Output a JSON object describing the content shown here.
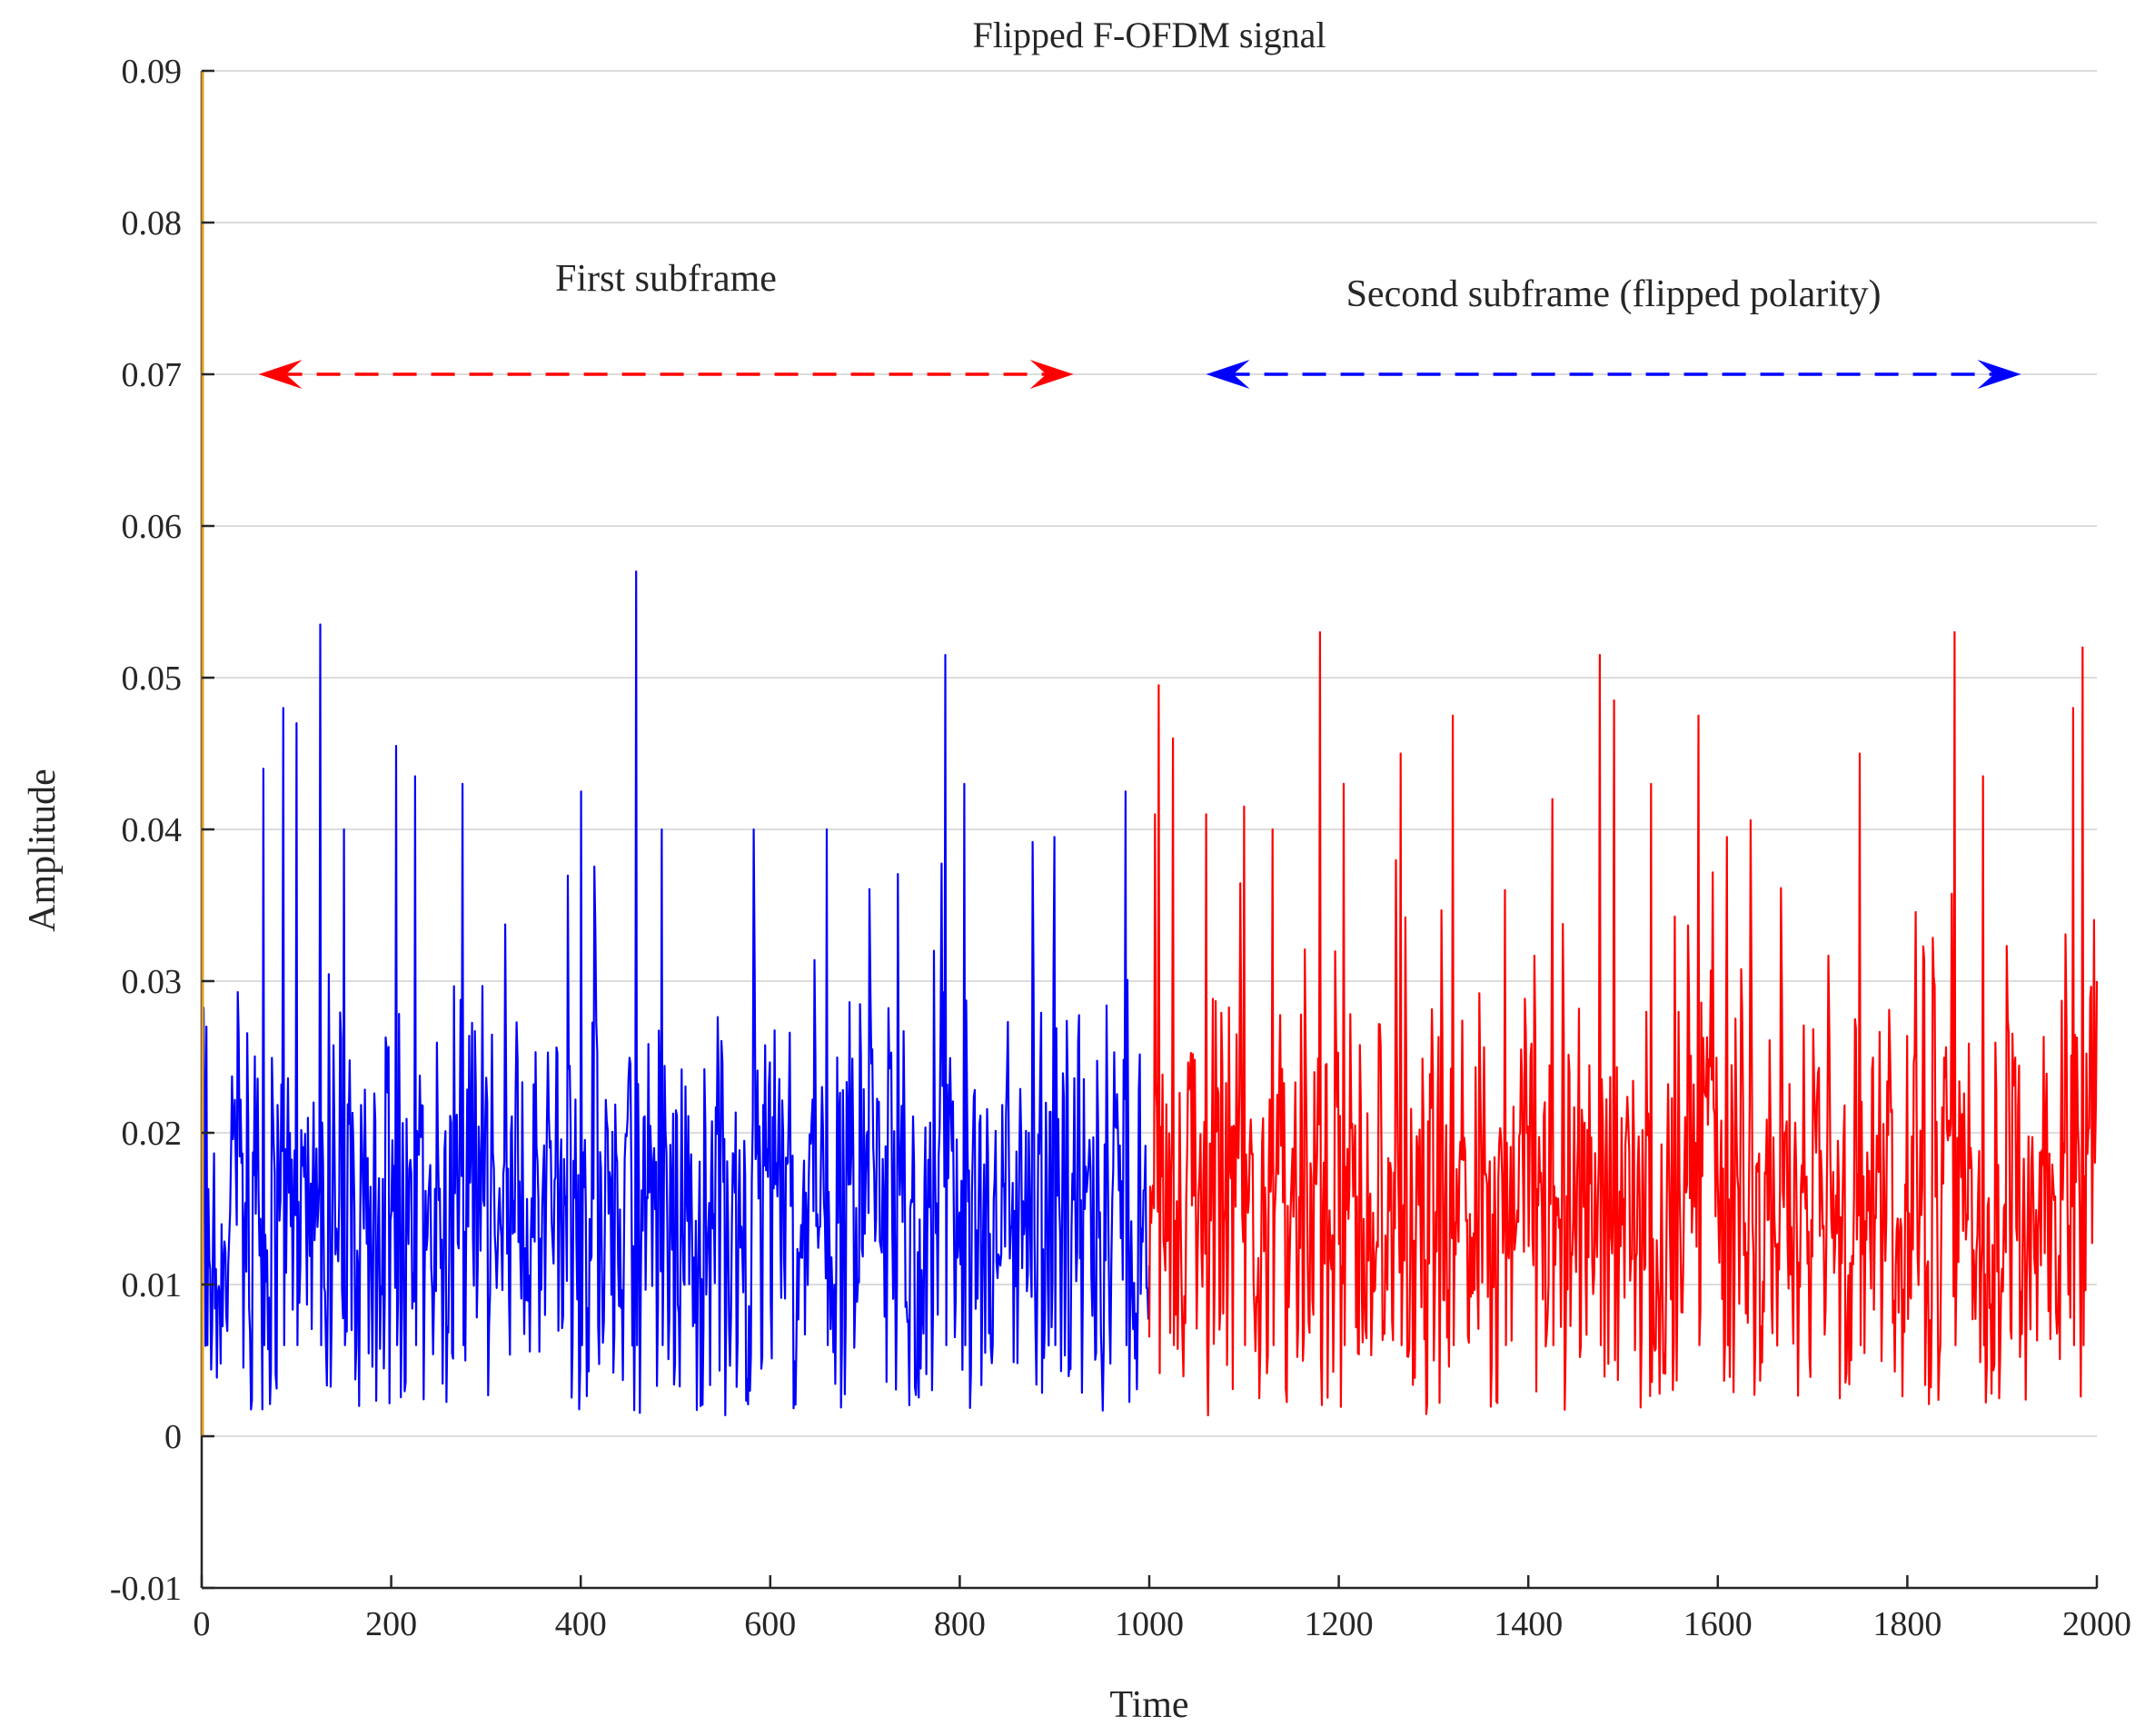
{
  "chart_data": {
    "type": "line",
    "title": "Flipped F-OFDM signal",
    "xlabel": "Time",
    "ylabel": "Amplitude",
    "xlim": [
      0,
      2000
    ],
    "ylim": [
      -0.01,
      0.09
    ],
    "x_ticks": [
      0,
      200,
      400,
      600,
      800,
      1000,
      1200,
      1400,
      1600,
      1800,
      2000
    ],
    "x_tick_labels": [
      "0",
      "200",
      "400",
      "600",
      "800",
      "1000",
      "1200",
      "1400",
      "1600",
      "1800",
      "2000"
    ],
    "y_ticks": [
      -0.01,
      0,
      0.01,
      0.02,
      0.03,
      0.04,
      0.05,
      0.06,
      0.07,
      0.08,
      0.09
    ],
    "y_tick_labels": [
      "-0.01",
      "0",
      "0.01",
      "0.02",
      "0.03",
      "0.04",
      "0.05",
      "0.06",
      "0.07",
      "0.08",
      "0.09"
    ],
    "grid": "horizontal",
    "series": [
      {
        "color": "#0000ff",
        "x_range": [
          0,
          1000
        ],
        "samples": 1000,
        "mean_approx": 0.015,
        "peaks": [
          {
            "x": 5,
            "y": 0.027
          },
          {
            "x": 65,
            "y": 0.044
          },
          {
            "x": 86,
            "y": 0.048
          },
          {
            "x": 100,
            "y": 0.047
          },
          {
            "x": 125,
            "y": 0.0535
          },
          {
            "x": 150,
            "y": 0.04
          },
          {
            "x": 205,
            "y": 0.0455
          },
          {
            "x": 225,
            "y": 0.0435
          },
          {
            "x": 275,
            "y": 0.043
          },
          {
            "x": 400,
            "y": 0.0425
          },
          {
            "x": 458,
            "y": 0.057
          },
          {
            "x": 485,
            "y": 0.04
          },
          {
            "x": 660,
            "y": 0.04
          },
          {
            "x": 785,
            "y": 0.0515
          },
          {
            "x": 805,
            "y": 0.043
          },
          {
            "x": 900,
            "y": 0.0395
          },
          {
            "x": 975,
            "y": 0.0425
          }
        ]
      },
      {
        "color": "#ff0000",
        "x_range": [
          1000,
          2000
        ],
        "samples": 1000,
        "mean_approx": 0.015,
        "peaks": [
          {
            "x": 1010,
            "y": 0.0495
          },
          {
            "x": 1025,
            "y": 0.046
          },
          {
            "x": 1060,
            "y": 0.041
          },
          {
            "x": 1100,
            "y": 0.0415
          },
          {
            "x": 1130,
            "y": 0.04
          },
          {
            "x": 1180,
            "y": 0.053
          },
          {
            "x": 1205,
            "y": 0.043
          },
          {
            "x": 1265,
            "y": 0.045
          },
          {
            "x": 1320,
            "y": 0.0475
          },
          {
            "x": 1375,
            "y": 0.036
          },
          {
            "x": 1425,
            "y": 0.042
          },
          {
            "x": 1475,
            "y": 0.0515
          },
          {
            "x": 1490,
            "y": 0.0485
          },
          {
            "x": 1530,
            "y": 0.043
          },
          {
            "x": 1580,
            "y": 0.0475
          },
          {
            "x": 1610,
            "y": 0.0395
          },
          {
            "x": 1750,
            "y": 0.045
          },
          {
            "x": 1850,
            "y": 0.053
          },
          {
            "x": 1880,
            "y": 0.0435
          },
          {
            "x": 1975,
            "y": 0.048
          },
          {
            "x": 1985,
            "y": 0.052
          },
          {
            "x": 2000,
            "y": 0.03
          }
        ]
      }
    ],
    "annotations": [
      {
        "text": "First subframe",
        "color": "#ff0000",
        "arrow_from": 60,
        "arrow_to": 920,
        "arrow_y": 0.07
      },
      {
        "text": "Second subframe (flipped polarity)",
        "color": "#0000ff",
        "arrow_from": 1060,
        "arrow_to": 1920,
        "arrow_y": 0.07
      }
    ]
  }
}
